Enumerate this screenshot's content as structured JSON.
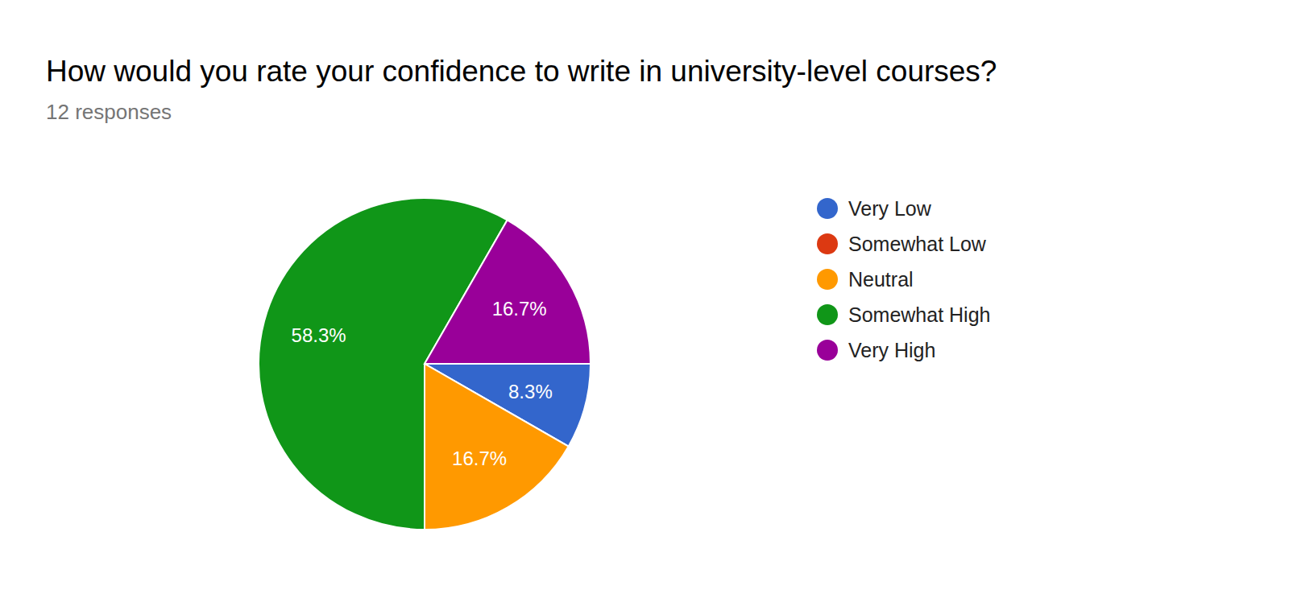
{
  "chart_data": {
    "type": "pie",
    "title": "How would you rate your confidence to write in university-level courses?",
    "subtitle": "12 responses",
    "categories": [
      "Very Low",
      "Somewhat Low",
      "Neutral",
      "Somewhat High",
      "Very High"
    ],
    "values": [
      8.3,
      0,
      16.7,
      58.3,
      16.7
    ],
    "value_labels": [
      "8.3%",
      null,
      "16.7%",
      "58.3%",
      "16.7%"
    ],
    "colors": [
      "#3366cc",
      "#dc3912",
      "#ff9900",
      "#109618",
      "#990099"
    ],
    "data_labels": true,
    "legend": "right"
  }
}
